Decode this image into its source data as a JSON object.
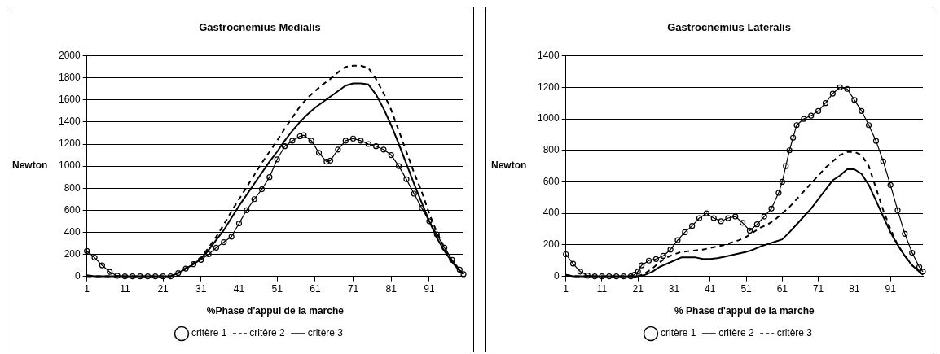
{
  "chart_data": [
    {
      "type": "line",
      "title": "Gastrocnemius Medialis",
      "xlabel": "%Phase d'appui de la marche",
      "ylabel": "Newton",
      "xlim": [
        1,
        100
      ],
      "xticks": [
        1,
        11,
        21,
        31,
        41,
        51,
        61,
        71,
        81,
        91
      ],
      "ylim": [
        0,
        2000
      ],
      "yticks": [
        0,
        200,
        400,
        600,
        800,
        1000,
        1200,
        1400,
        1600,
        1800,
        2000
      ],
      "grid": "y",
      "legend": "bottom",
      "series": [
        {
          "name": "critère 1",
          "color": "#000000",
          "marker": "circle",
          "line_style": "solid",
          "x": [
            1,
            3,
            5,
            7,
            9,
            11,
            13,
            15,
            17,
            19,
            21,
            23,
            25,
            27,
            29,
            31,
            33,
            35,
            37,
            39,
            41,
            43,
            45,
            47,
            49,
            51,
            53,
            55,
            57,
            58,
            60,
            62,
            64,
            65,
            67,
            69,
            71,
            73,
            75,
            77,
            79,
            81,
            83,
            85,
            87,
            89,
            91,
            93,
            95,
            97,
            99,
            100
          ],
          "values": [
            230,
            170,
            100,
            40,
            5,
            0,
            0,
            0,
            0,
            0,
            0,
            0,
            30,
            70,
            110,
            150,
            200,
            260,
            310,
            360,
            480,
            600,
            700,
            790,
            900,
            1060,
            1180,
            1230,
            1270,
            1280,
            1230,
            1120,
            1040,
            1050,
            1150,
            1230,
            1250,
            1230,
            1200,
            1180,
            1150,
            1100,
            1000,
            880,
            750,
            620,
            500,
            380,
            260,
            150,
            60,
            20
          ]
        },
        {
          "name": "critère 2",
          "color": "#000000",
          "marker": "none",
          "line_style": "dashed",
          "x": [
            1,
            5,
            9,
            13,
            17,
            21,
            23,
            25,
            29,
            31,
            33,
            35,
            37,
            39,
            41,
            43,
            45,
            47,
            49,
            51,
            53,
            55,
            57,
            59,
            61,
            63,
            65,
            67,
            69,
            71,
            73,
            75,
            77,
            79,
            81,
            83,
            85,
            87,
            89,
            91,
            93,
            95,
            97,
            99,
            100
          ],
          "values": [
            0,
            0,
            0,
            0,
            0,
            0,
            0,
            30,
            120,
            170,
            260,
            360,
            470,
            590,
            700,
            810,
            920,
            1030,
            1130,
            1230,
            1340,
            1440,
            1540,
            1620,
            1680,
            1740,
            1790,
            1850,
            1900,
            1910,
            1910,
            1890,
            1790,
            1660,
            1510,
            1320,
            1130,
            940,
            770,
            570,
            400,
            260,
            140,
            60,
            20
          ]
        },
        {
          "name": "critère 3",
          "color": "#000000",
          "marker": "none",
          "line_style": "solid",
          "x": [
            1,
            3,
            5,
            9,
            13,
            17,
            21,
            23,
            25,
            27,
            29,
            31,
            33,
            35,
            37,
            39,
            41,
            43,
            45,
            47,
            49,
            51,
            53,
            55,
            57,
            59,
            61,
            63,
            65,
            67,
            69,
            71,
            73,
            75,
            77,
            79,
            81,
            83,
            85,
            87,
            89,
            91,
            93,
            95,
            97,
            99,
            100
          ],
          "values": [
            10,
            0,
            0,
            0,
            0,
            0,
            0,
            0,
            30,
            70,
            110,
            160,
            240,
            330,
            420,
            530,
            640,
            740,
            840,
            940,
            1040,
            1130,
            1230,
            1320,
            1400,
            1470,
            1530,
            1580,
            1630,
            1680,
            1730,
            1750,
            1750,
            1740,
            1650,
            1520,
            1370,
            1200,
            1020,
            840,
            670,
            500,
            350,
            230,
            130,
            50,
            20
          ]
        }
      ]
    },
    {
      "type": "line",
      "title": "Gastrocnemius Lateralis",
      "xlabel": "% Phase d'appui de la marche",
      "ylabel": "Newton",
      "xlim": [
        1,
        100
      ],
      "xticks": [
        1,
        11,
        21,
        31,
        41,
        51,
        61,
        71,
        81,
        91
      ],
      "ylim": [
        0,
        1400
      ],
      "yticks": [
        0,
        200,
        400,
        600,
        800,
        1000,
        1200,
        1400
      ],
      "grid": "y",
      "legend": "bottom",
      "series": [
        {
          "name": "critère 1",
          "color": "#000000",
          "marker": "circle",
          "line_style": "solid",
          "x": [
            1,
            3,
            5,
            7,
            9,
            11,
            13,
            15,
            17,
            19,
            20,
            21,
            22,
            24,
            26,
            28,
            30,
            32,
            34,
            36,
            38,
            40,
            42,
            44,
            46,
            48,
            50,
            52,
            54,
            56,
            58,
            60,
            61,
            62,
            63,
            64,
            65,
            67,
            69,
            71,
            73,
            75,
            77,
            79,
            81,
            83,
            85,
            87,
            89,
            91,
            93,
            95,
            97,
            99,
            100
          ],
          "values": [
            140,
            80,
            30,
            5,
            0,
            0,
            0,
            0,
            0,
            0,
            10,
            30,
            70,
            100,
            110,
            130,
            170,
            230,
            280,
            320,
            370,
            400,
            370,
            350,
            370,
            380,
            340,
            290,
            330,
            380,
            430,
            530,
            600,
            700,
            800,
            880,
            960,
            1000,
            1020,
            1050,
            1100,
            1160,
            1200,
            1190,
            1120,
            1050,
            960,
            860,
            730,
            580,
            420,
            270,
            150,
            60,
            30
          ]
        },
        {
          "name": "critère 2",
          "color": "#000000",
          "marker": "none",
          "line_style": "solid",
          "x": [
            1,
            3,
            7,
            11,
            15,
            19,
            21,
            23,
            25,
            27,
            29,
            31,
            33,
            35,
            37,
            39,
            41,
            43,
            45,
            47,
            49,
            51,
            53,
            55,
            57,
            59,
            61,
            63,
            65,
            67,
            69,
            71,
            73,
            75,
            77,
            79,
            81,
            83,
            85,
            87,
            89,
            91,
            93,
            95,
            97,
            99,
            100
          ],
          "values": [
            10,
            0,
            0,
            0,
            0,
            0,
            0,
            10,
            30,
            60,
            80,
            100,
            120,
            120,
            120,
            110,
            110,
            115,
            125,
            135,
            145,
            155,
            170,
            190,
            205,
            220,
            235,
            280,
            330,
            380,
            430,
            490,
            550,
            610,
            640,
            680,
            680,
            650,
            580,
            480,
            380,
            280,
            200,
            130,
            70,
            30,
            10
          ]
        },
        {
          "name": "critère 3",
          "color": "#000000",
          "marker": "none",
          "line_style": "dashed",
          "x": [
            1,
            3,
            7,
            11,
            15,
            19,
            21,
            23,
            25,
            27,
            29,
            31,
            33,
            35,
            37,
            39,
            41,
            43,
            45,
            47,
            49,
            51,
            53,
            55,
            57,
            59,
            61,
            63,
            65,
            67,
            69,
            71,
            73,
            75,
            77,
            79,
            81,
            83,
            85,
            87,
            89,
            91,
            93,
            95,
            97,
            99,
            100
          ],
          "values": [
            10,
            0,
            0,
            0,
            0,
            0,
            0,
            20,
            50,
            90,
            120,
            140,
            155,
            160,
            165,
            170,
            180,
            190,
            200,
            215,
            230,
            250,
            280,
            310,
            330,
            360,
            400,
            440,
            490,
            540,
            590,
            640,
            690,
            730,
            770,
            790,
            790,
            770,
            700,
            560,
            420,
            300,
            200,
            130,
            70,
            30,
            15
          ]
        }
      ]
    }
  ]
}
